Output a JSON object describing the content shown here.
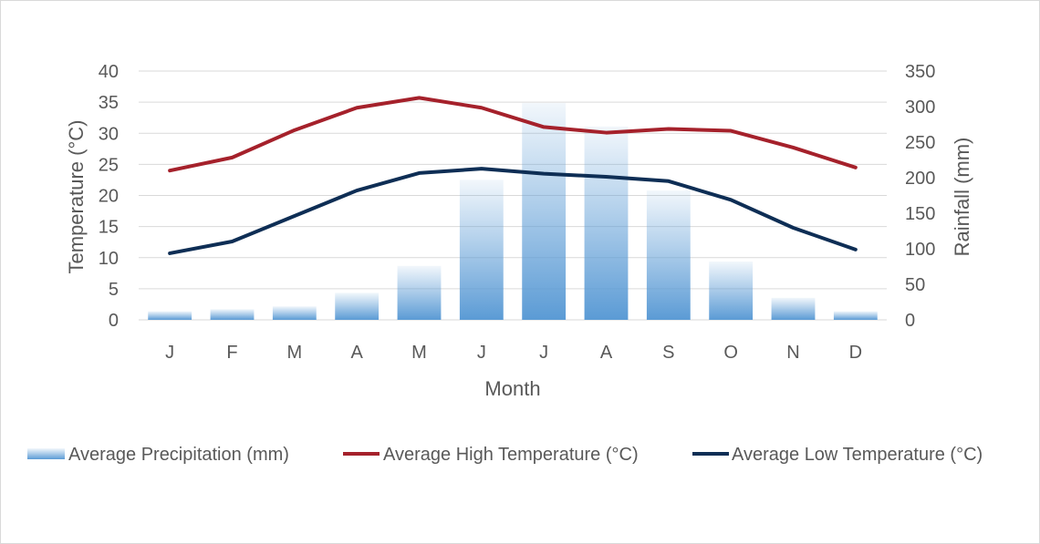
{
  "chart_data": {
    "type": "bar",
    "categories": [
      "J",
      "F",
      "M",
      "A",
      "M",
      "J",
      "J",
      "A",
      "S",
      "O",
      "N",
      "D"
    ],
    "xlabel": "Month",
    "ylabel_left": "Temperature (°C)",
    "ylabel_right": "Rainfall (mm)",
    "ylim_left": [
      0,
      40
    ],
    "ylim_right": [
      0,
      350
    ],
    "yticks_left": [
      0,
      5,
      10,
      15,
      20,
      25,
      30,
      35,
      40
    ],
    "yticks_right": [
      0,
      50,
      100,
      150,
      200,
      250,
      300,
      350
    ],
    "grid": true,
    "legend_position": "bottom",
    "series": [
      {
        "name": "Average Precipitation (mm)",
        "type": "bar",
        "axis": "right",
        "color": "#5b9bd5",
        "values": [
          12,
          15,
          19,
          38,
          76,
          197,
          305,
          272,
          182,
          82,
          31,
          12
        ]
      },
      {
        "name": "Average High Temperature (°C)",
        "type": "line",
        "axis": "left",
        "color": "#a5212b",
        "values": [
          24.0,
          26.1,
          30.5,
          34.1,
          35.7,
          34.1,
          31.0,
          30.1,
          30.7,
          30.4,
          27.7,
          24.5
        ]
      },
      {
        "name": "Average Low Temperature (°C)",
        "type": "line",
        "axis": "left",
        "color": "#0e2e55",
        "values": [
          10.7,
          12.6,
          16.7,
          20.8,
          23.6,
          24.3,
          23.5,
          23.0,
          22.3,
          19.3,
          14.8,
          11.3
        ]
      }
    ]
  }
}
